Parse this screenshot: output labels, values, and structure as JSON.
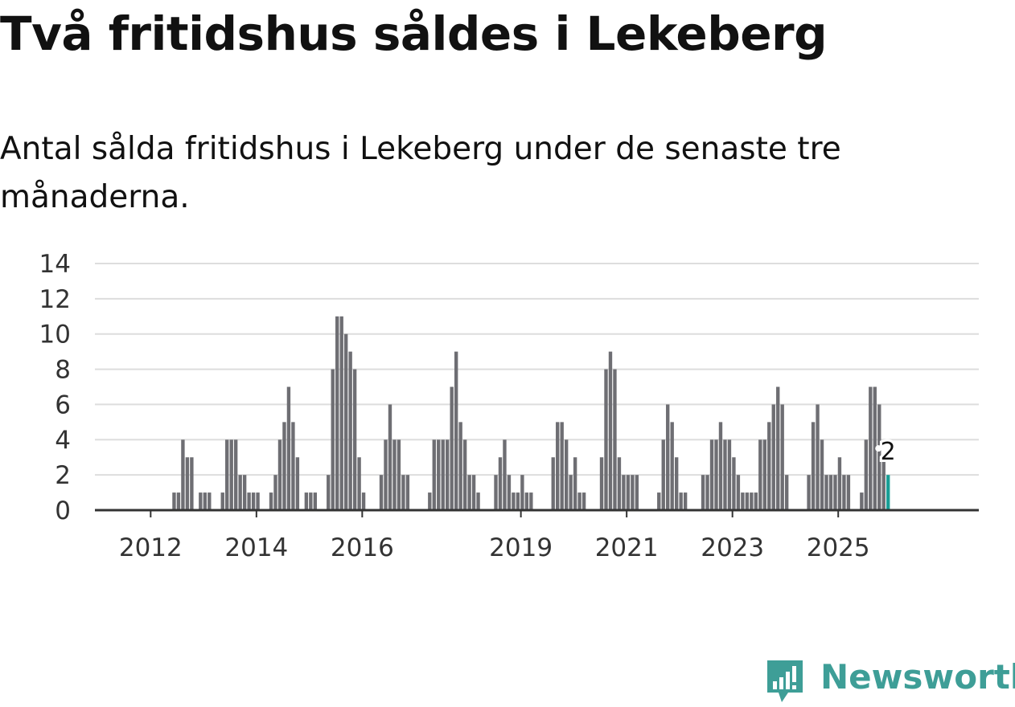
{
  "header": {
    "title": "Två fritidshus såldes i Lekeberg",
    "subtitle": "Antal sålda fritidshus i Lekeberg under de senaste tre månaderna."
  },
  "brand": {
    "name": "Newsworthy",
    "color": "#3e9e97",
    "icon": "bar-chart-logo-icon"
  },
  "colors": {
    "bar": "#6e6e73",
    "highlight": "#1a9e96",
    "grid": "#dddddd",
    "axis": "#333333"
  },
  "chart_data": {
    "type": "bar",
    "title": "Två fritidshus såldes i Lekeberg",
    "subtitle": "Antal sålda fritidshus i Lekeberg under de senaste tre månaderna.",
    "xlabel": "",
    "ylabel": "",
    "ylim": [
      0,
      14
    ],
    "yticks": [
      0,
      2,
      4,
      6,
      8,
      10,
      12,
      14
    ],
    "grid": true,
    "start": {
      "year": 2011,
      "month": 1
    },
    "xtick_labels": [
      {
        "label": "2012",
        "year": 2012
      },
      {
        "label": "2014",
        "year": 2014
      },
      {
        "label": "2016",
        "year": 2016
      },
      {
        "label": "2019",
        "year": 2019
      },
      {
        "label": "2021",
        "year": 2021
      },
      {
        "label": "2023",
        "year": 2023
      },
      {
        "label": "2025",
        "year": 2025
      }
    ],
    "values": [
      0,
      0,
      0,
      0,
      0,
      0,
      0,
      0,
      0,
      0,
      0,
      0,
      0,
      0,
      0,
      0,
      0,
      1,
      1,
      4,
      3,
      3,
      0,
      1,
      1,
      1,
      0,
      0,
      1,
      4,
      4,
      4,
      2,
      2,
      1,
      1,
      1,
      0,
      0,
      1,
      2,
      4,
      5,
      7,
      5,
      3,
      0,
      1,
      1,
      1,
      0,
      0,
      2,
      8,
      11,
      11,
      10,
      9,
      8,
      3,
      1,
      0,
      0,
      0,
      2,
      4,
      6,
      4,
      4,
      2,
      2,
      0,
      0,
      0,
      0,
      1,
      4,
      4,
      4,
      4,
      7,
      9,
      5,
      4,
      2,
      2,
      1,
      0,
      0,
      0,
      2,
      3,
      4,
      2,
      1,
      1,
      2,
      1,
      1,
      0,
      0,
      0,
      0,
      3,
      5,
      5,
      4,
      2,
      3,
      1,
      1,
      0,
      0,
      0,
      3,
      8,
      9,
      8,
      3,
      2,
      2,
      2,
      2,
      0,
      0,
      0,
      0,
      1,
      4,
      6,
      5,
      3,
      1,
      1,
      0,
      0,
      0,
      2,
      2,
      4,
      4,
      5,
      4,
      4,
      3,
      2,
      1,
      1,
      1,
      1,
      4,
      4,
      5,
      6,
      7,
      6,
      2,
      0,
      0,
      0,
      0,
      2,
      5,
      6,
      4,
      2,
      2,
      2,
      3,
      2,
      2,
      0,
      0,
      1,
      4,
      7,
      7,
      6,
      3,
      2
    ],
    "highlight_index": 179,
    "highlight_label": "2"
  }
}
